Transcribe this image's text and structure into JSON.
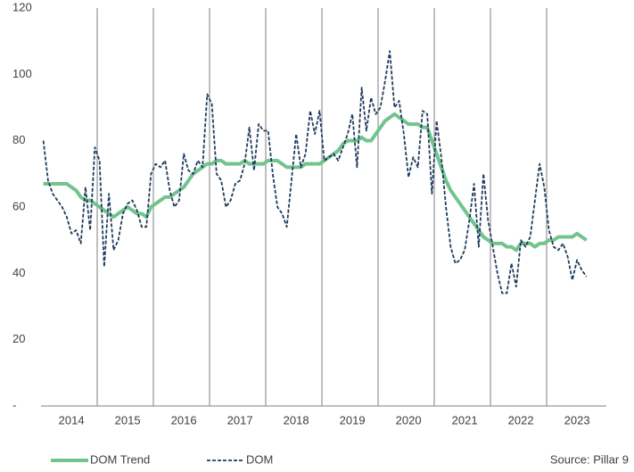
{
  "chart_data": {
    "type": "line",
    "categories": [
      null,
      null,
      null,
      null,
      null,
      null,
      "2014",
      null,
      null,
      null,
      null,
      null,
      null,
      null,
      null,
      null,
      null,
      null,
      "2015",
      null,
      null,
      null,
      null,
      null,
      null,
      null,
      null,
      null,
      null,
      null,
      "2016",
      null,
      null,
      null,
      null,
      null,
      null,
      null,
      null,
      null,
      null,
      null,
      "2017",
      null,
      null,
      null,
      null,
      null,
      null,
      null,
      null,
      null,
      null,
      null,
      "2018",
      null,
      null,
      null,
      null,
      null,
      null,
      null,
      null,
      null,
      null,
      null,
      "2019",
      null,
      null,
      null,
      null,
      null,
      null,
      null,
      null,
      null,
      null,
      null,
      "2020",
      null,
      null,
      null,
      null,
      null,
      null,
      null,
      null,
      null,
      null,
      null,
      "2021",
      null,
      null,
      null,
      null,
      null,
      null,
      null,
      null,
      null,
      null,
      null,
      "2022",
      null,
      null,
      null,
      null,
      null,
      null,
      null,
      null,
      null,
      null,
      null,
      "2023",
      null,
      null
    ],
    "series": [
      {
        "name": "DOM Trend",
        "color": "#72c48d",
        "dashed": false,
        "values": [
          67,
          67,
          67,
          67,
          67,
          67,
          66,
          65,
          63,
          62,
          62,
          61,
          60,
          59,
          58,
          57,
          58,
          59,
          60,
          59,
          58,
          58,
          57,
          60,
          61,
          62,
          63,
          63,
          64,
          65,
          66,
          68,
          70,
          71,
          72,
          73,
          73,
          74,
          74,
          73,
          73,
          73,
          73,
          74,
          73,
          73,
          73,
          73,
          74,
          74,
          74,
          73,
          72,
          72,
          72,
          72,
          73,
          73,
          73,
          73,
          74,
          75,
          76,
          77,
          79,
          80,
          80,
          80,
          81,
          80,
          80,
          82,
          84,
          86,
          87,
          88,
          87,
          86,
          85,
          85,
          85,
          84,
          84,
          80,
          76,
          72,
          68,
          65,
          63,
          61,
          59,
          57,
          55,
          53,
          51,
          50,
          49,
          49,
          49,
          48,
          48,
          47,
          49,
          49,
          49,
          48,
          49,
          49,
          50,
          50,
          51,
          51,
          51,
          51,
          52,
          51,
          50
        ]
      },
      {
        "name": "DOM",
        "color": "#1f3b5c",
        "dashed": true,
        "values": [
          80,
          68,
          64,
          62,
          60,
          57,
          52,
          53,
          49,
          66,
          53,
          78,
          74,
          42,
          64,
          47,
          50,
          58,
          61,
          62,
          59,
          54,
          54,
          70,
          73,
          72,
          74,
          65,
          60,
          62,
          76,
          71,
          70,
          74,
          72,
          94,
          91,
          70,
          68,
          60,
          62,
          67,
          68,
          73,
          84,
          71,
          85,
          83,
          83,
          70,
          60,
          58,
          54,
          68,
          82,
          72,
          76,
          89,
          82,
          89,
          74,
          75,
          76,
          74,
          78,
          82,
          88,
          72,
          96,
          83,
          93,
          88,
          90,
          98,
          107,
          90,
          92,
          82,
          69,
          75,
          72,
          89,
          88,
          64,
          86,
          75,
          60,
          48,
          43,
          44,
          47,
          56,
          67,
          48,
          70,
          56,
          48,
          40,
          34,
          34,
          43,
          36,
          50,
          48,
          51,
          62,
          73,
          66,
          53,
          48,
          47,
          49,
          45,
          38,
          44,
          41,
          39
        ]
      }
    ],
    "ylim": [
      0,
      120
    ],
    "yticks": [
      {
        "value": 0,
        "label": "-"
      },
      20,
      40,
      60,
      80,
      100,
      120
    ],
    "source": "Source: Pillar 9"
  }
}
